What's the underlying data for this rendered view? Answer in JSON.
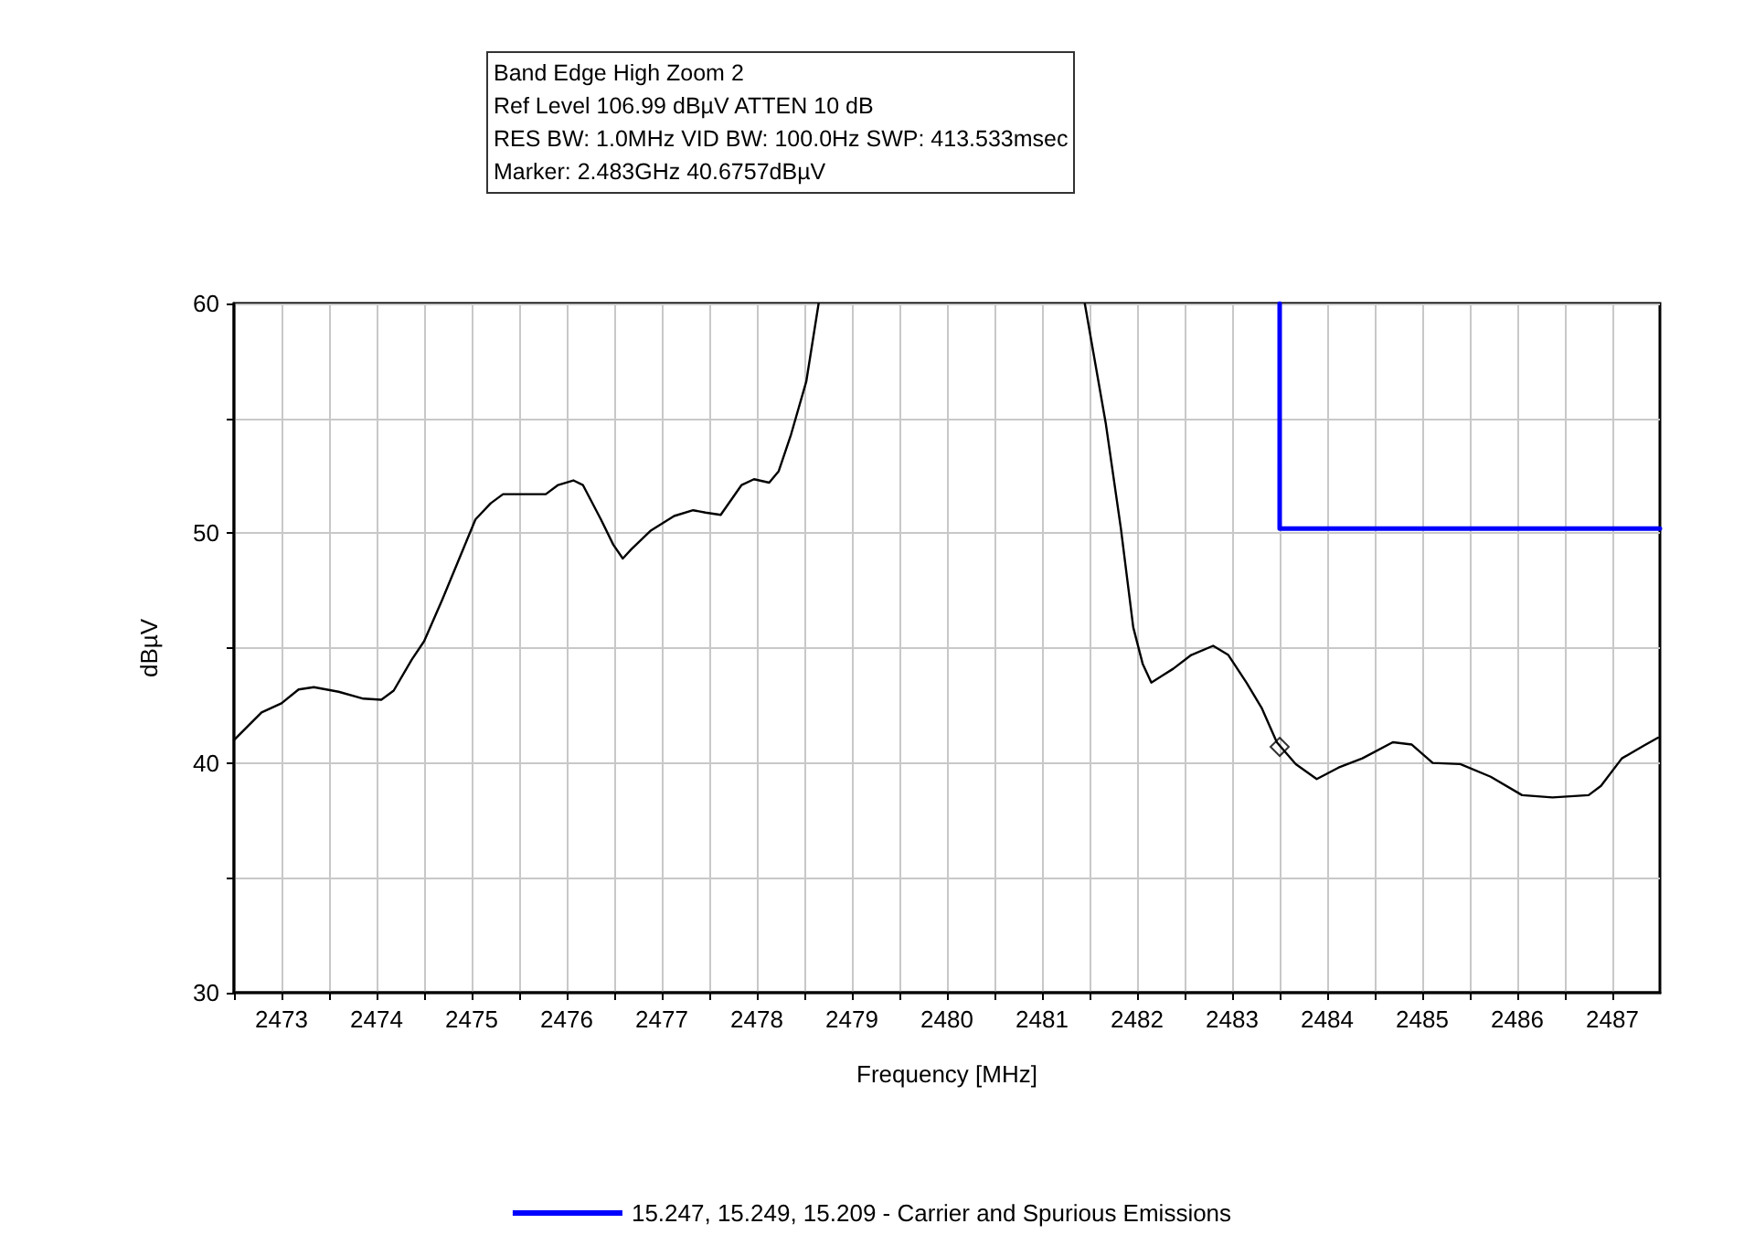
{
  "chart_data": {
    "type": "line",
    "title": "Band Edge High Zoom 2",
    "annotations": [
      "Ref Level 106.99 dBµV    ATTEN 10 dB",
      "RES BW: 1.0MHz  VID BW: 100.0Hz  SWP: 413.533msec",
      "Marker: 2.483GHz  40.6757dBµV"
    ],
    "xlabel": "Frequency [MHz]",
    "ylabel": "dBµV",
    "xlim": [
      2472.5,
      2487.5
    ],
    "xticks": [
      {
        "value": 2472.5,
        "label": null
      },
      2473,
      {
        "value": 2473.5,
        "label": null
      },
      2474,
      {
        "value": 2474.5,
        "label": null
      },
      2475,
      {
        "value": 2475.5,
        "label": null
      },
      2476,
      {
        "value": 2476.5,
        "label": null
      },
      2477,
      {
        "value": 2477.5,
        "label": null
      },
      2478,
      {
        "value": 2478.5,
        "label": null
      },
      2479,
      {
        "value": 2479.5,
        "label": null
      },
      2480,
      {
        "value": 2480.5,
        "label": null
      },
      2481,
      {
        "value": 2481.5,
        "label": null
      },
      2482,
      {
        "value": 2482.5,
        "label": null
      },
      2483,
      {
        "value": 2483.5,
        "label": null
      },
      2484,
      {
        "value": 2484.5,
        "label": null
      },
      2485,
      {
        "value": 2485.5,
        "label": null
      },
      2486,
      {
        "value": 2486.5,
        "label": null
      },
      2487
    ],
    "ylim": [
      30,
      60
    ],
    "yticks": [
      30,
      {
        "value": 35,
        "label": null
      },
      40,
      {
        "value": 45,
        "label": null
      },
      50,
      {
        "value": 55,
        "label": null
      },
      60
    ],
    "grid": true,
    "legend": "bottom",
    "series": [
      {
        "color": "#000000",
        "marker": "none",
        "x": [
          2472.5,
          2472.79,
          2473.0,
          2473.18,
          2473.34,
          2473.6,
          2473.86,
          2474.05,
          2474.18,
          2474.37,
          2474.5,
          2474.69,
          2474.88,
          2475.04,
          2475.2,
          2475.33,
          2475.78,
          2475.91,
          2476.07,
          2476.17,
          2476.36,
          2476.49,
          2476.59,
          2476.68,
          2476.88,
          2477.13,
          2477.33,
          2477.46,
          2477.62,
          2477.84,
          2477.97,
          2478.13,
          2478.23,
          2478.36,
          2478.52,
          2478.65,
          2480.0,
          2481.45,
          2481.67,
          2481.83,
          2481.96,
          2482.06,
          2482.15,
          2482.38,
          2482.57,
          2482.8,
          2482.96,
          2483.15,
          2483.31,
          2483.47,
          2483.67,
          2483.89,
          2484.12,
          2484.37,
          2484.69,
          2484.89,
          2485.11,
          2485.4,
          2485.72,
          2486.05,
          2486.37,
          2486.75,
          2486.88,
          2487.1,
          2487.33,
          2487.48
        ],
        "values": [
          41.0,
          42.2,
          42.6,
          43.2,
          43.3,
          43.1,
          42.8,
          42.75,
          43.15,
          44.5,
          45.3,
          47.1,
          49.0,
          50.6,
          51.3,
          51.7,
          51.7,
          52.1,
          52.3,
          52.1,
          50.6,
          49.5,
          48.9,
          49.3,
          50.1,
          50.75,
          51.0,
          50.9,
          50.8,
          52.1,
          52.35,
          52.2,
          52.7,
          54.3,
          56.6,
          60,
          null,
          60,
          54.8,
          50.2,
          45.9,
          44.3,
          43.5,
          44.1,
          44.7,
          45.1,
          44.7,
          43.5,
          42.4,
          40.9,
          39.95,
          39.3,
          39.8,
          40.2,
          40.9,
          40.8,
          40.0,
          39.95,
          39.4,
          38.6,
          38.5,
          38.6,
          39.0,
          40.2,
          40.75,
          41.1
        ]
      },
      {
        "name": "15.247, 15.249, 15.209 - Carrier and Spurious Emissions",
        "color": "#0000ff",
        "marker": "none",
        "x": [
          2483.5,
          2483.5,
          2487.5
        ],
        "values": [
          60,
          50.2,
          50.2
        ]
      },
      {
        "type": "scatter",
        "color": "#000000",
        "marker": "diamond",
        "x": [
          2483.5
        ],
        "values": [
          40.7
        ]
      }
    ]
  }
}
